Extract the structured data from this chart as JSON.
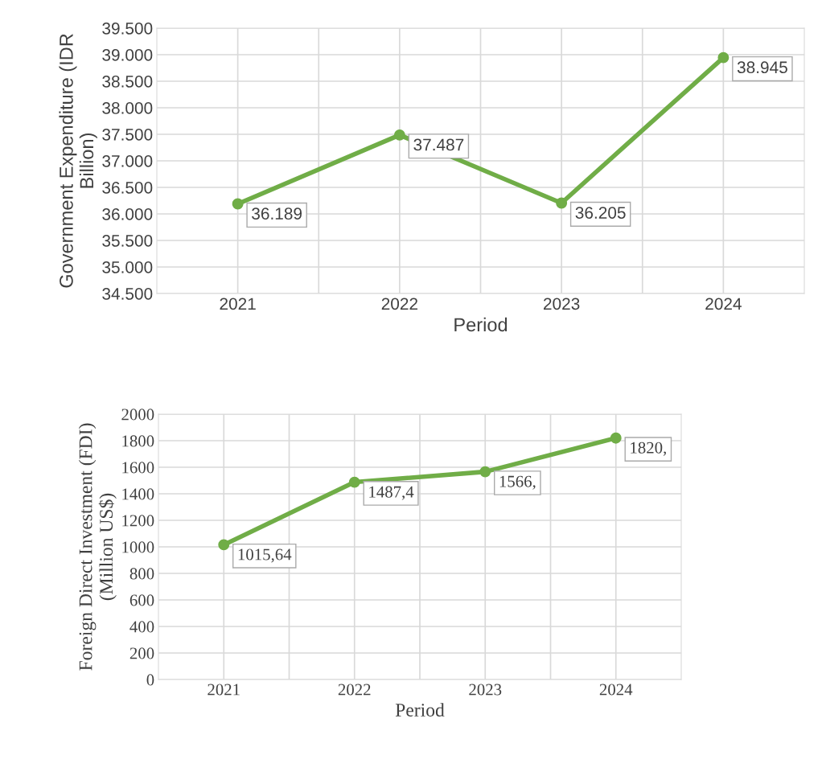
{
  "chart_data": [
    {
      "type": "line",
      "xlabel": "Period",
      "ylabel": "Government Expenditure (IDR\nBillion)",
      "categories": [
        "2021",
        "2022",
        "2023",
        "2024"
      ],
      "series": [
        {
          "color": "#70ad47",
          "values": [
            36189,
            37487,
            36205,
            38945
          ],
          "value_labels": [
            "36.189",
            "37.487",
            "36.205",
            "38.945"
          ]
        }
      ],
      "ylim": [
        34500,
        39500
      ],
      "yticks": [
        {
          "value": 34500,
          "label": "34.500"
        },
        {
          "value": 35000,
          "label": "35.000"
        },
        {
          "value": 35500,
          "label": "35.500"
        },
        {
          "value": 36000,
          "label": "36.000"
        },
        {
          "value": 36500,
          "label": "36.500"
        },
        {
          "value": 37000,
          "label": "37.000"
        },
        {
          "value": 37500,
          "label": "37.500"
        },
        {
          "value": 38000,
          "label": "38.000"
        },
        {
          "value": 38500,
          "label": "38.500"
        },
        {
          "value": 39000,
          "label": "39.000"
        },
        {
          "value": 39500,
          "label": "39.500"
        }
      ],
      "grid": true,
      "marker": "circle",
      "line_style": "solid"
    },
    {
      "type": "line",
      "xlabel": "Period",
      "ylabel": "Foreign Direct Investment (FDI)\n(Million US$)",
      "categories": [
        "2021",
        "2022",
        "2023",
        "2024"
      ],
      "series": [
        {
          "color": "#70ad47",
          "values": [
            1015.64,
            1487.4,
            1566,
            1820
          ],
          "value_labels": [
            "1015,64",
            "1487,4",
            "1566,",
            "1820,"
          ]
        }
      ],
      "ylim": [
        0,
        2000
      ],
      "yticks": [
        0,
        200,
        400,
        600,
        800,
        1000,
        1200,
        1400,
        1600,
        1800,
        2000
      ],
      "grid": true,
      "marker": "circle",
      "line_style": "solid"
    }
  ]
}
